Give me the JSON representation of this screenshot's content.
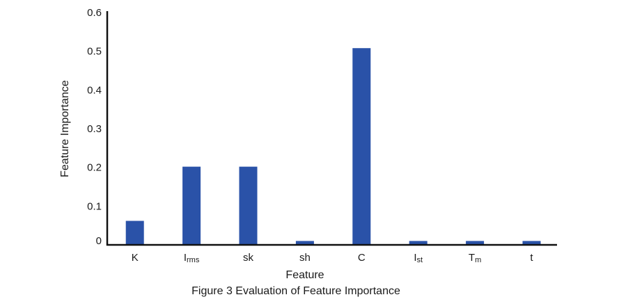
{
  "chart_data": {
    "type": "bar",
    "categories": [
      {
        "main": "K",
        "sub": ""
      },
      {
        "main": "I",
        "sub": "rms"
      },
      {
        "main": "sk",
        "sub": ""
      },
      {
        "main": "sh",
        "sub": ""
      },
      {
        "main": "C",
        "sub": ""
      },
      {
        "main": "I",
        "sub": "st"
      },
      {
        "main": "T",
        "sub": "m"
      },
      {
        "main": "t",
        "sub": ""
      }
    ],
    "values": [
      0.062,
      0.202,
      0.202,
      0.01,
      0.508,
      0.01,
      0.01,
      0.01
    ],
    "xlabel": "Feature",
    "ylabel": "Feature Importance",
    "ylim": [
      0,
      0.6
    ],
    "yticks": [
      "0",
      "0.1",
      "0.2",
      "0.3",
      "0.4",
      "0.5",
      "0.6"
    ],
    "bar_color": "#2a52a8",
    "grid": false
  },
  "caption": "Figure 3 Evaluation of Feature Importance"
}
